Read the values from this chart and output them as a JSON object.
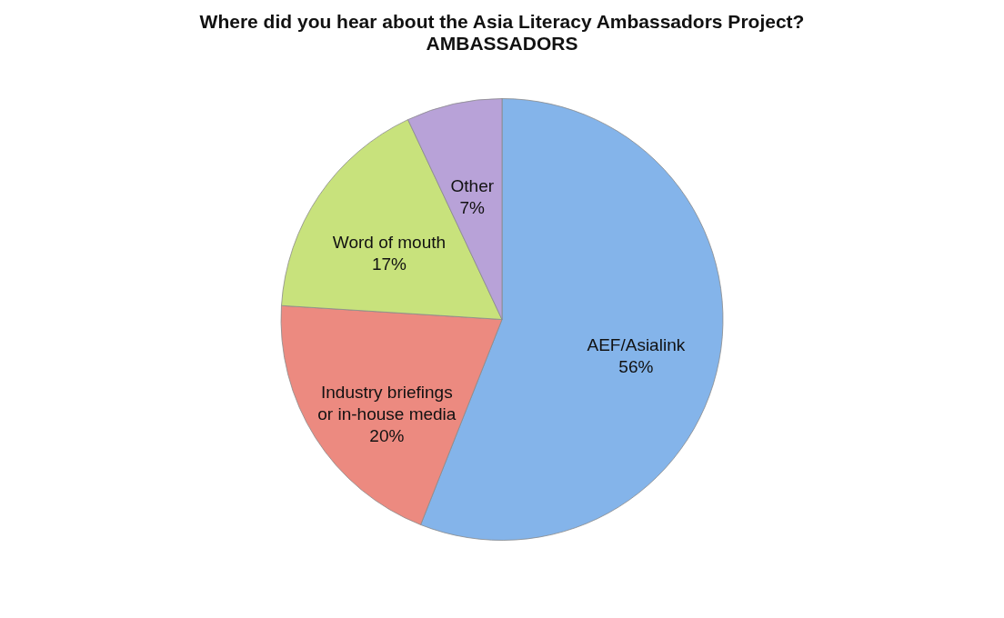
{
  "chart_data": {
    "type": "pie",
    "title": "Where did you hear about the Asia Literacy Ambassadors Project?",
    "subtitle": "AMBASSADORS",
    "categories": [
      "AEF/Asialink",
      "Industry briefings or in-house media",
      "Word of mouth",
      "Other"
    ],
    "values": [
      56,
      20,
      17,
      7
    ],
    "value_labels": [
      "56%",
      "20%",
      "17%",
      "7%"
    ],
    "colors": [
      "#84b4ea",
      "#ec8a80",
      "#c8e27c",
      "#b8a2d8"
    ],
    "legend": false
  }
}
